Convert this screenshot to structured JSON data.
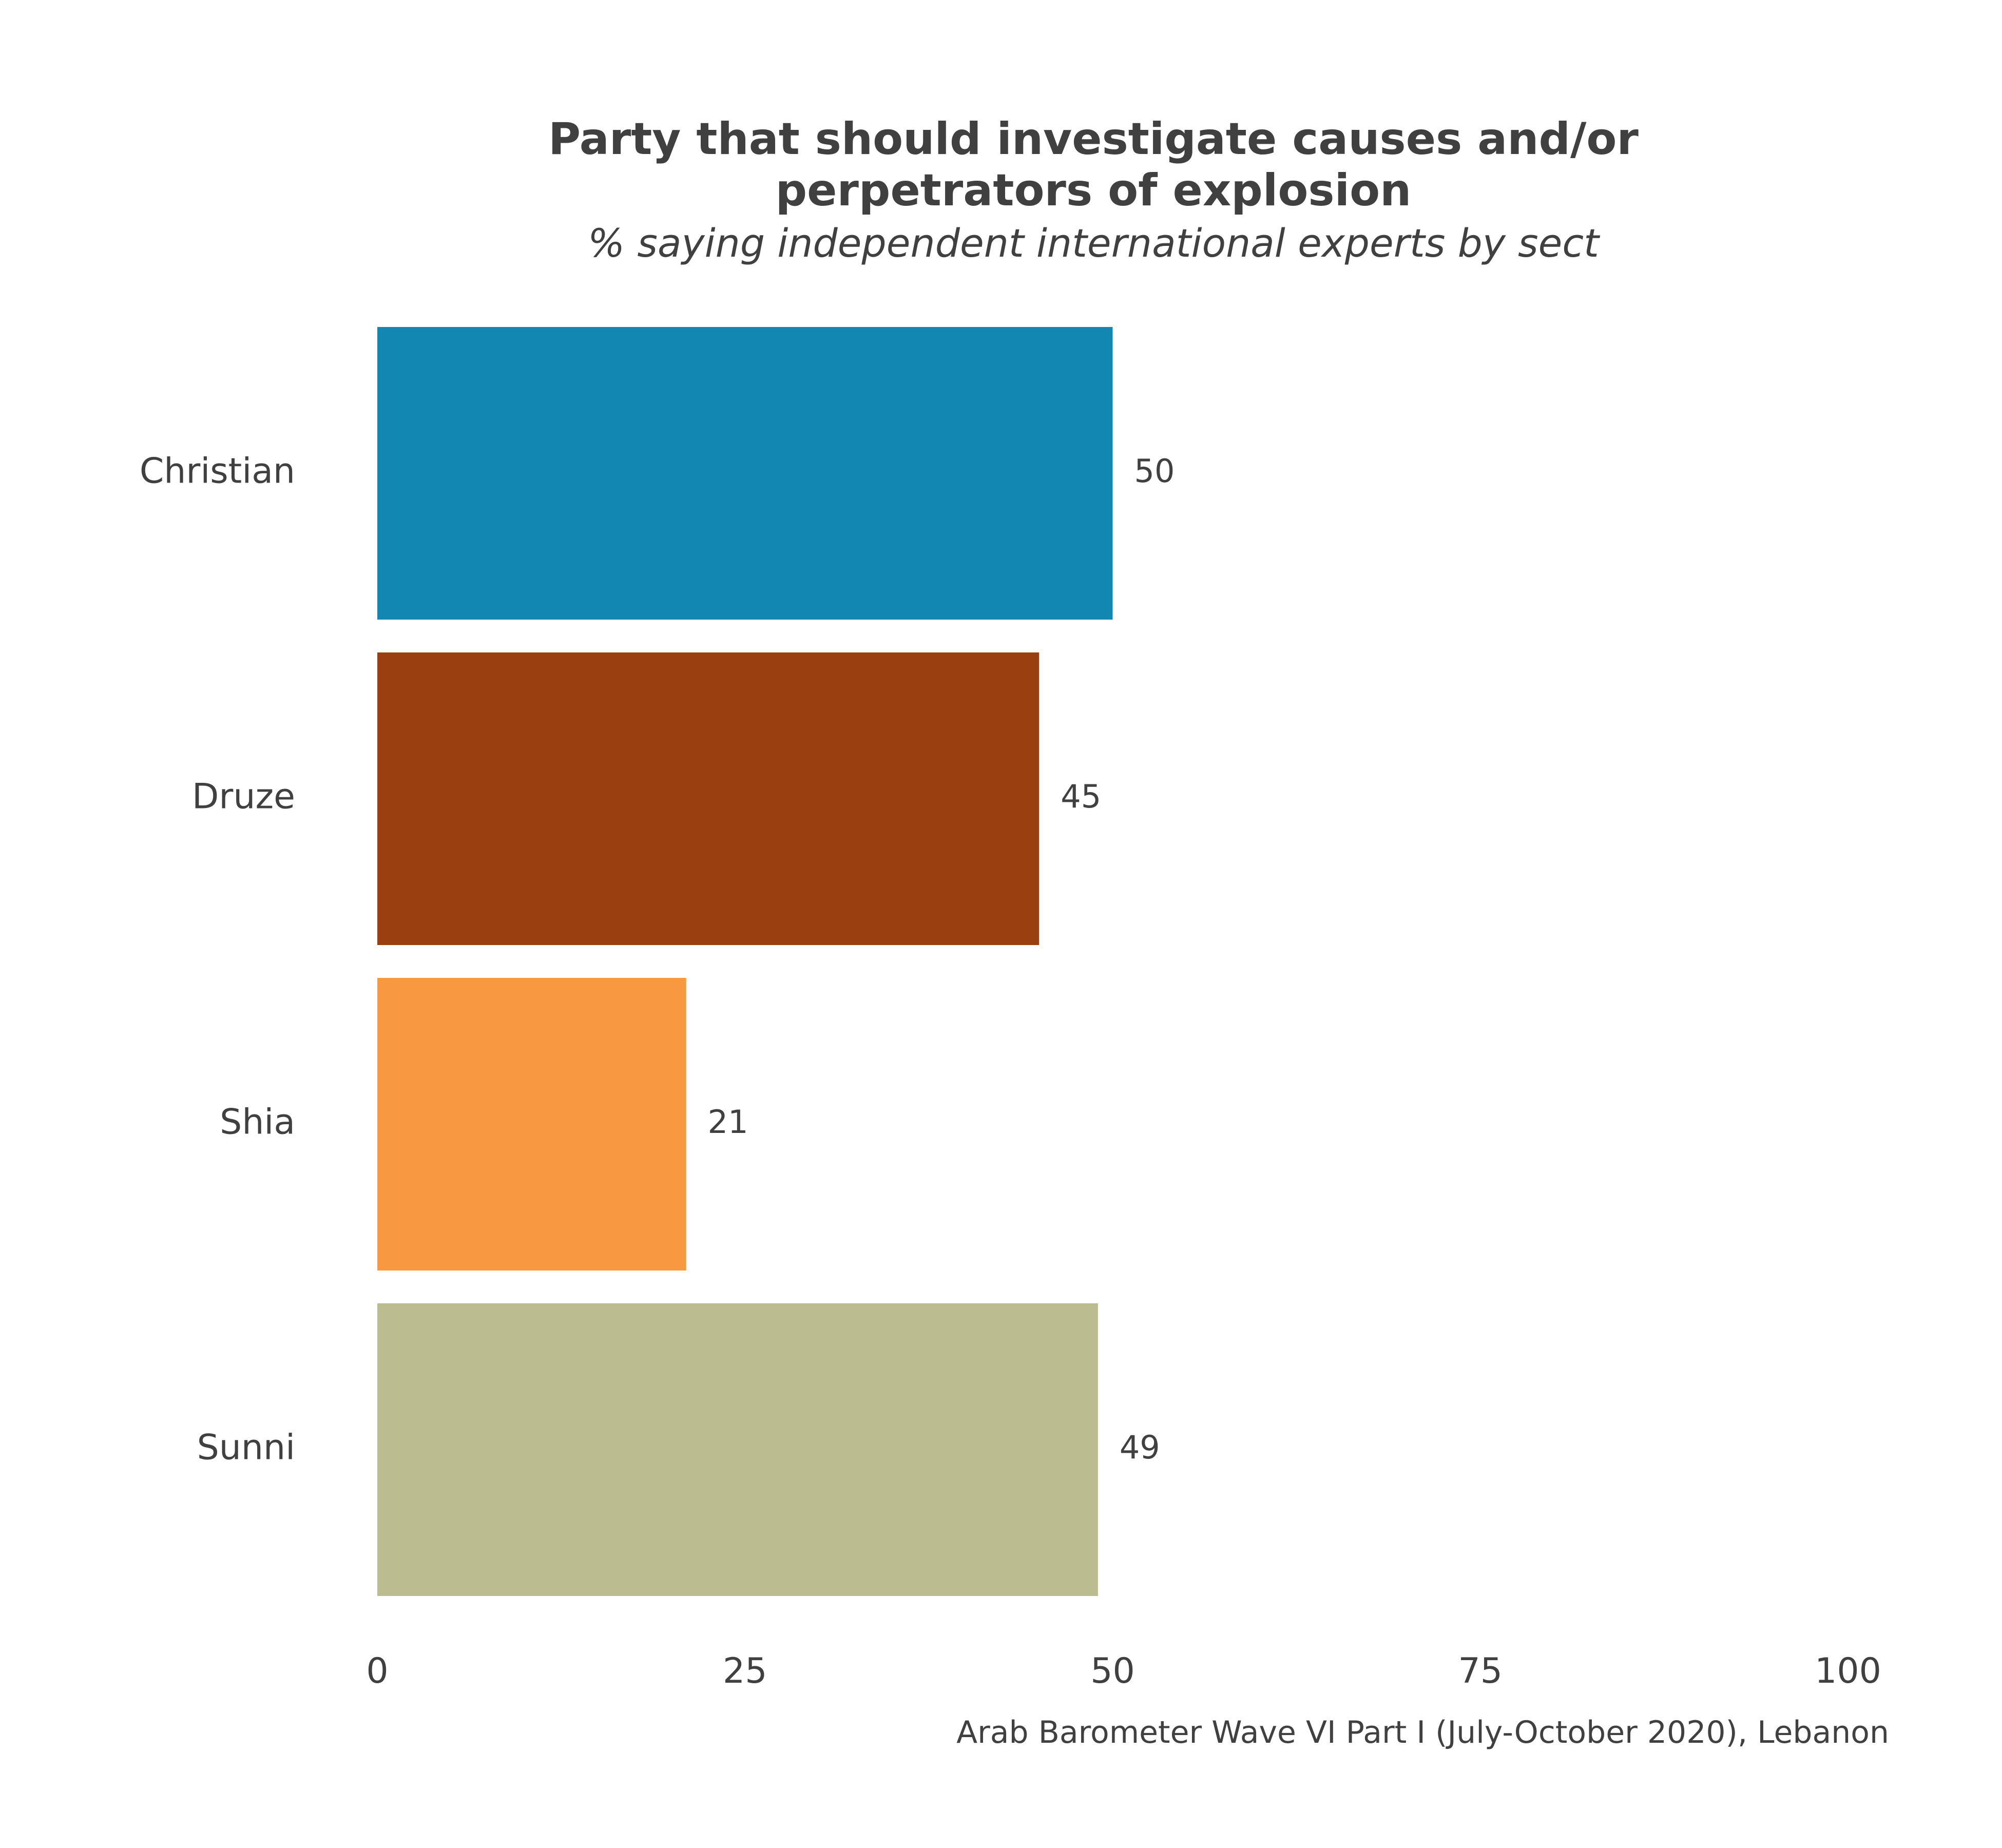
{
  "chart_data": {
    "type": "bar",
    "orientation": "horizontal",
    "title_lines": [
      "Party that should investigate causes and/or",
      "perpetrators of explosion"
    ],
    "subtitle": "% saying independent international experts by sect",
    "categories": [
      "Christian",
      "Druze",
      "Shia",
      "Sunni"
    ],
    "values": [
      50,
      45,
      21,
      49
    ],
    "value_labels": [
      "50",
      "45",
      "21",
      "49"
    ],
    "colors": [
      "#1287B1",
      "#9A3F0F",
      "#F89942",
      "#BBBC90"
    ],
    "xlim": [
      0,
      100
    ],
    "xticks": [
      0,
      25,
      50,
      75,
      100
    ],
    "xtick_labels": [
      "0",
      "25",
      "50",
      "75",
      "100"
    ],
    "xlabel": "",
    "ylabel": "",
    "grid": false,
    "legend": "none",
    "caption": "Arab Barometer Wave VI Part I (July-October 2020), Lebanon"
  }
}
